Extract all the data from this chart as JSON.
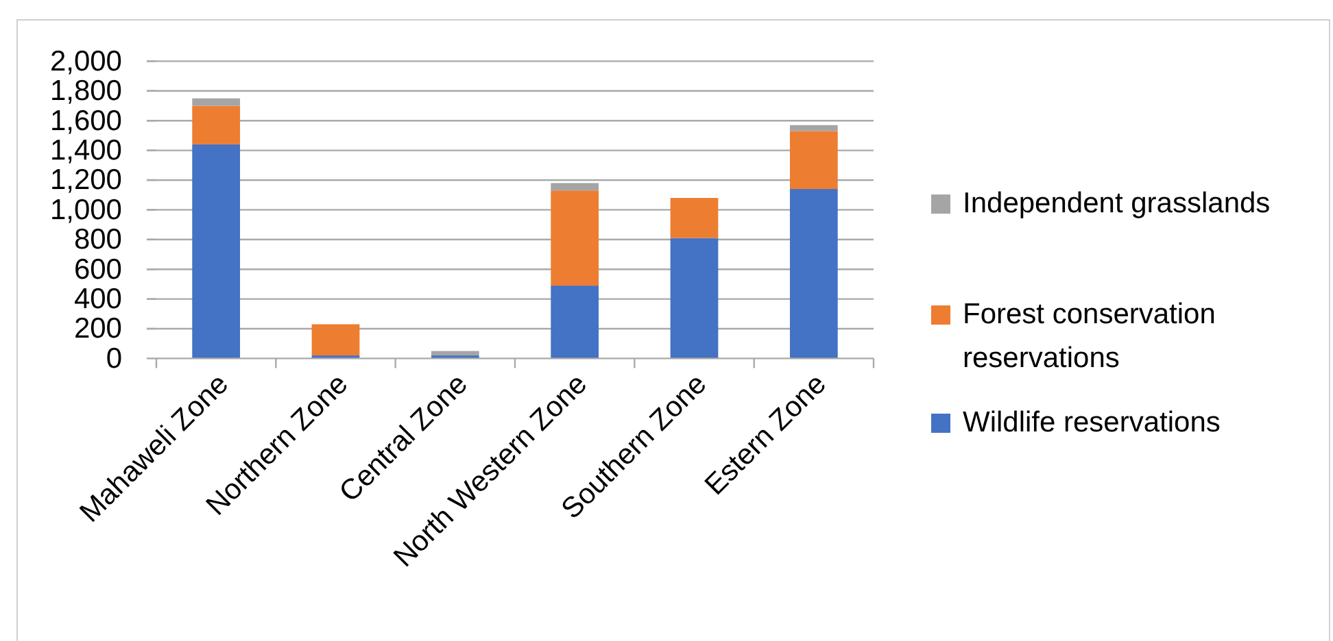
{
  "chart_data": {
    "type": "bar",
    "stacked": true,
    "categories": [
      "Mahaweli Zone",
      "Northern Zone",
      "Central Zone",
      "North Western Zone",
      "Southern Zone",
      "Estern Zone"
    ],
    "series": [
      {
        "name": "Wildlife reservations",
        "color": "#4472c4",
        "values": [
          1440,
          20,
          20,
          490,
          810,
          1140
        ]
      },
      {
        "name": "Forest conservation reservations",
        "color": "#ed7d31",
        "values": [
          260,
          210,
          0,
          640,
          270,
          390
        ]
      },
      {
        "name": "Independent grasslands",
        "color": "#a5a5a5",
        "values": [
          50,
          0,
          30,
          50,
          0,
          40
        ]
      }
    ],
    "ylim": [
      0,
      2000
    ],
    "yticks": [
      0,
      200,
      400,
      600,
      800,
      {
        "value": 1000,
        "label": "1,000"
      },
      {
        "value": 1200,
        "label": "1,200"
      },
      {
        "value": 1400,
        "label": "1,400"
      },
      {
        "value": 1600,
        "label": "1,600"
      },
      {
        "value": 1800,
        "label": "1,800"
      },
      {
        "value": 2000,
        "label": "2,000"
      }
    ],
    "grid": "y",
    "legend": "right"
  }
}
